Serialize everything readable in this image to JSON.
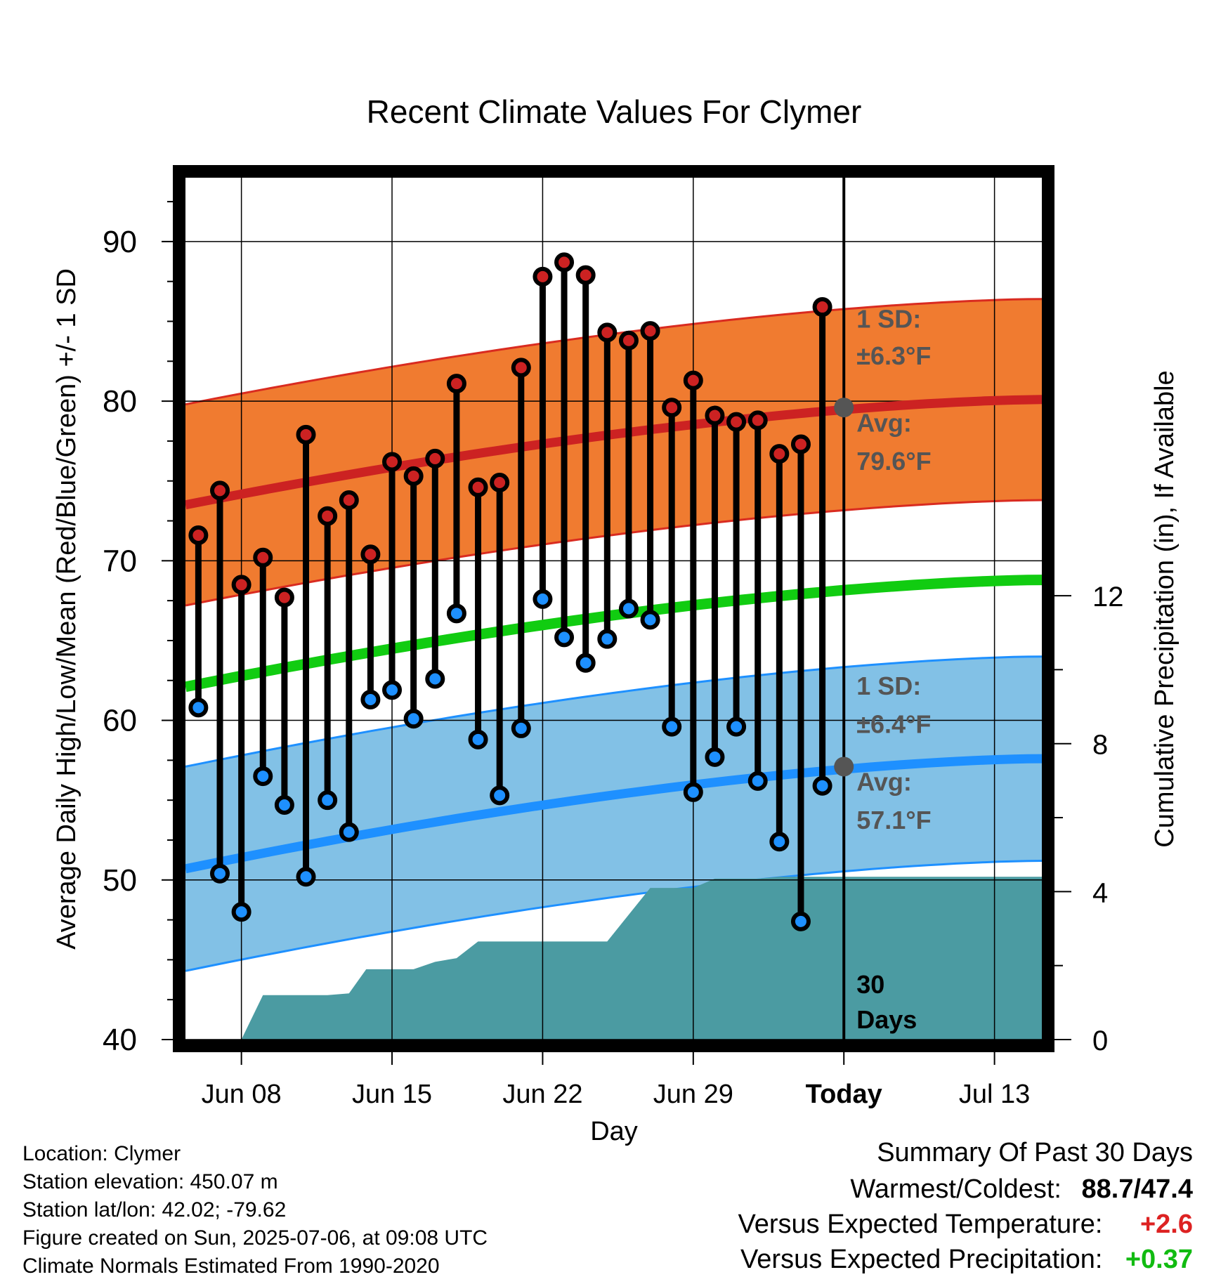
{
  "chart_data": {
    "type": "line",
    "title": "Recent Climate Values For Clymer",
    "xlabel": "Day",
    "ylabel": "Average Daily High/Low/Mean (Red/Blue/Green) +/- 1 SD",
    "y2label": "Cumulative Precipitation (in), If Available",
    "ylim": [
      40,
      94
    ],
    "y2lim": [
      0,
      23.3
    ],
    "yticks": [
      "40",
      "50",
      "60",
      "70",
      "80",
      "90"
    ],
    "y2ticks": [
      "0",
      "4",
      "8",
      "12"
    ],
    "xticks": [
      "Jun 08",
      "Jun 15",
      "Jun 22",
      "Jun 29",
      "Today",
      "Jul 13"
    ],
    "x_range_days_from_jun08": [
      -2.6,
      37.2
    ],
    "today_offset": 28,
    "dates": [
      "Jun 06",
      "Jun 07",
      "Jun 08",
      "Jun 09",
      "Jun 10",
      "Jun 11",
      "Jun 12",
      "Jun 13",
      "Jun 14",
      "Jun 15",
      "Jun 16",
      "Jun 17",
      "Jun 18",
      "Jun 19",
      "Jun 20",
      "Jun 21",
      "Jun 22",
      "Jun 23",
      "Jun 24",
      "Jun 25",
      "Jun 26",
      "Jun 27",
      "Jun 28",
      "Jun 29",
      "Jun 30",
      "Jul 01",
      "Jul 02",
      "Jul 03",
      "Jul 04",
      "Jul 05"
    ],
    "series": [
      {
        "name": "High",
        "color": "#cc2222",
        "values": [
          71.6,
          74.4,
          68.5,
          70.2,
          67.7,
          77.9,
          72.8,
          73.8,
          70.4,
          76.2,
          75.3,
          76.4,
          81.1,
          74.6,
          74.9,
          82.1,
          87.8,
          88.7,
          87.9,
          84.3,
          83.8,
          84.4,
          79.6,
          81.3,
          79.1,
          78.7,
          78.8,
          76.7,
          77.3,
          85.9
        ]
      },
      {
        "name": "Low",
        "color": "#1e90ff",
        "values": [
          60.8,
          50.4,
          48.0,
          56.5,
          54.7,
          50.2,
          55.0,
          53.0,
          61.3,
          61.9,
          60.1,
          62.6,
          66.7,
          58.8,
          55.3,
          59.5,
          67.6,
          65.2,
          63.6,
          65.1,
          67.0,
          66.3,
          59.6,
          55.5,
          57.7,
          59.6,
          56.2,
          52.4,
          47.4,
          55.9
        ]
      }
    ],
    "normals": {
      "high_avg_start": 73.5,
      "high_avg_end": 80.1,
      "high_sd": 6.3,
      "low_avg_start": 50.7,
      "low_avg_end": 57.6,
      "low_sd": 6.4,
      "mean_start": 62.1,
      "mean_end": 68.8
    },
    "precip_cumulative": [
      {
        "d": -2.6,
        "v": 0.0
      },
      {
        "d": 0.0,
        "v": 0.0
      },
      {
        "d": 1.0,
        "v": 1.2
      },
      {
        "d": 4.0,
        "v": 1.2
      },
      {
        "d": 5.0,
        "v": 1.25
      },
      {
        "d": 5.8,
        "v": 1.9
      },
      {
        "d": 8.0,
        "v": 1.9
      },
      {
        "d": 9.0,
        "v": 2.1
      },
      {
        "d": 10.0,
        "v": 2.2
      },
      {
        "d": 11.0,
        "v": 2.65
      },
      {
        "d": 17.0,
        "v": 2.65
      },
      {
        "d": 19.0,
        "v": 4.1
      },
      {
        "d": 21.0,
        "v": 4.1
      },
      {
        "d": 22.0,
        "v": 4.35
      },
      {
        "d": 24.0,
        "v": 4.35
      },
      {
        "d": 25.0,
        "v": 4.4
      },
      {
        "d": 37.2,
        "v": 4.4
      }
    ],
    "annotations": {
      "high_sd_label": "1 SD:",
      "high_sd_value": "±6.3°F",
      "high_avg_label": "Avg:",
      "high_avg_value": "79.6°F",
      "high_avg_today": 79.6,
      "low_sd_label": "1 SD:",
      "low_sd_value": "±6.4°F",
      "low_avg_label": "Avg:",
      "low_avg_value": "57.1°F",
      "low_avg_today": 57.1,
      "days_number": "30",
      "days_label": "Days"
    },
    "colors": {
      "high_band": "#f07b30",
      "high_band_edge": "#d92b20",
      "high_avg": "#cc2222",
      "low_band": "#82c1e6",
      "low_band_edge": "#1e90ff",
      "low_avg": "#1e90ff",
      "mean": "#11cc11",
      "precip": "#4b9ba2",
      "annotation": "#555555"
    }
  },
  "info": {
    "location": "Location: Clymer",
    "elevation": "Station elevation: 450.07 m",
    "latlon": "Station lat/lon: 42.02; -79.62",
    "created": "Figure created on Sun, 2025-07-06, at 09:08 UTC",
    "normals": "Climate Normals Estimated From 1990-2020"
  },
  "summary": {
    "title": "Summary Of Past 30 Days",
    "warmest_label": "Warmest/Coldest:",
    "warmest_value": "88.7/47.4",
    "temp_label": "Versus Expected Temperature:",
    "temp_value": "+2.6",
    "temp_color": "#dd2222",
    "precip_label": "Versus Expected Precipitation:",
    "precip_value": "+0.37",
    "precip_color": "#11bb11"
  }
}
